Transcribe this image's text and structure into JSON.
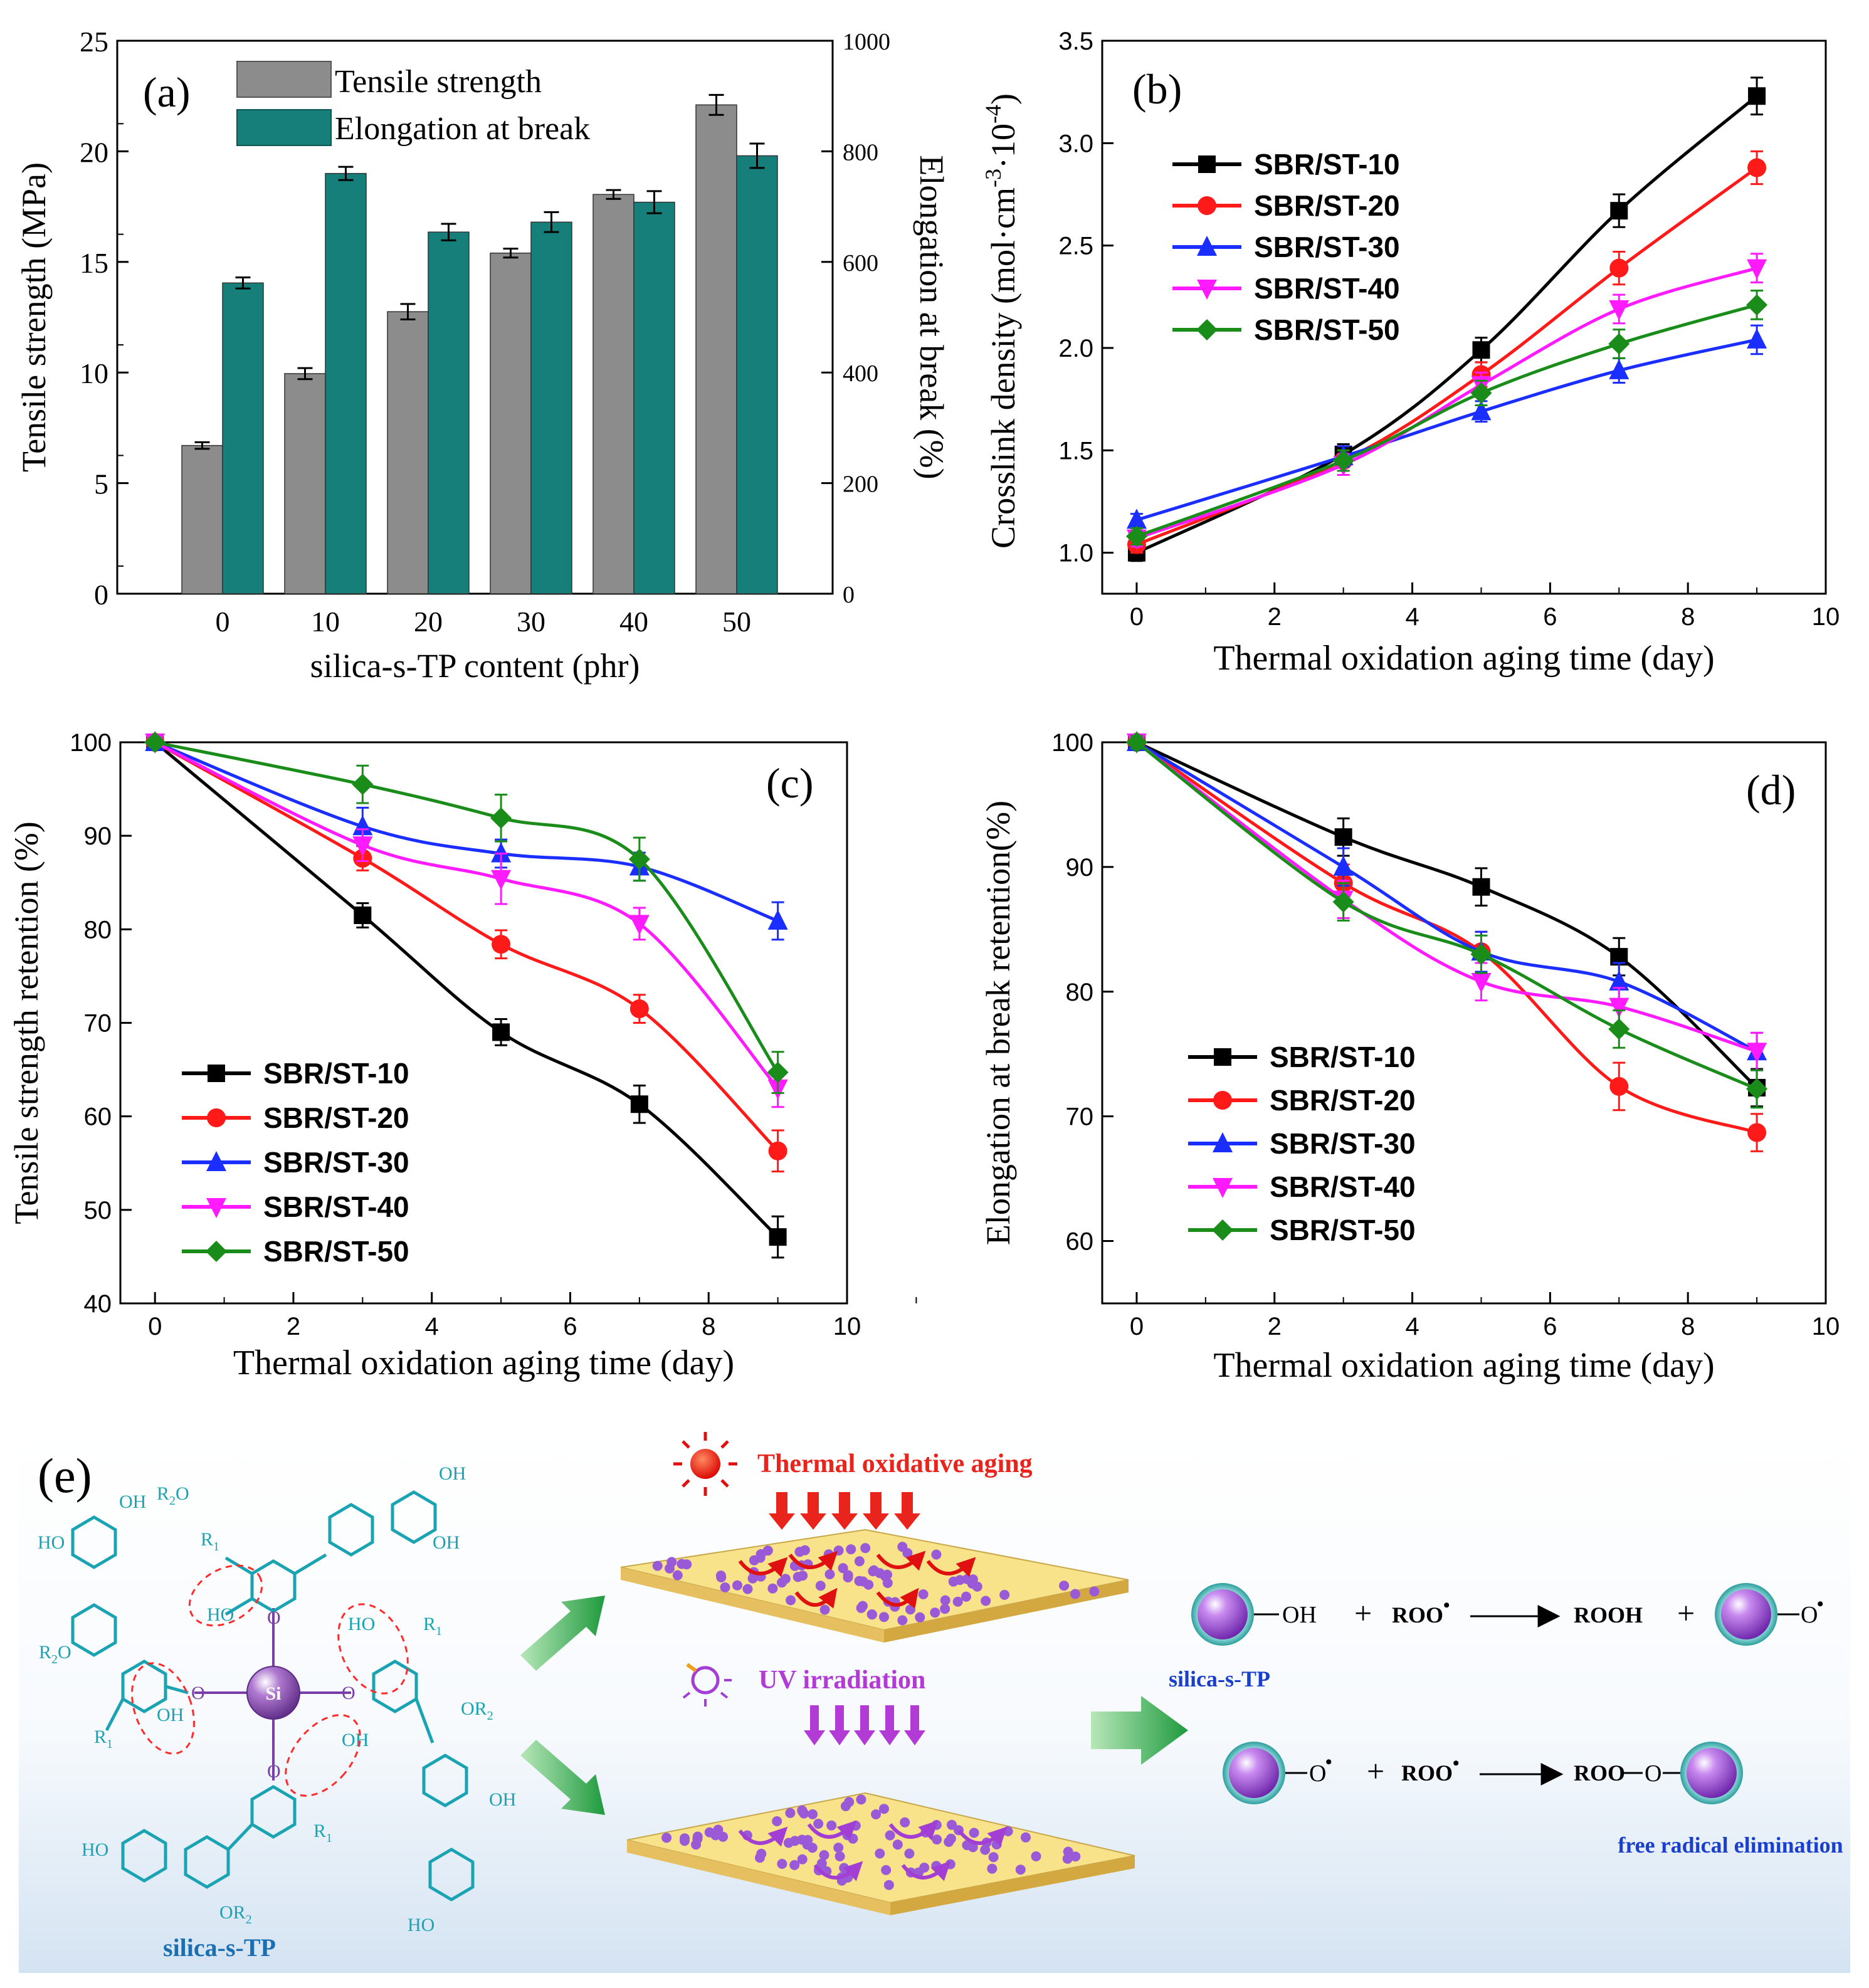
{
  "chart_data": [
    {
      "panel": "(a)",
      "type": "bar",
      "xlabel": "silica-s-TP content (phr)",
      "ylabel": "Tensile strength (MPa)",
      "y2label": "Elongation at break (%)",
      "categories": [
        "0",
        "10",
        "20",
        "30",
        "40",
        "50"
      ],
      "ylim": [
        0,
        25
      ],
      "y2lim": [
        0,
        1000
      ],
      "yticks": [
        "0",
        "5",
        "10",
        "15",
        "20",
        "25"
      ],
      "y2ticks": [
        "0",
        "200",
        "400",
        "600",
        "800",
        "1000"
      ],
      "series": [
        {
          "name": "Tensile strength",
          "axis": "left",
          "color": "#8c8c8c",
          "values": [
            6.7,
            9.95,
            12.75,
            15.4,
            18.05,
            22.1
          ],
          "errors": [
            0.15,
            0.25,
            0.35,
            0.2,
            0.2,
            0.45
          ]
        },
        {
          "name": "Elongation at break",
          "axis": "right",
          "color": "#177f79",
          "values": [
            562,
            760,
            654,
            672,
            708,
            792
          ],
          "errors": [
            10,
            12,
            15,
            18,
            20,
            22
          ]
        }
      ]
    },
    {
      "panel": "(b)",
      "type": "line",
      "xlabel": "Thermal oxidation aging time (day)",
      "ylabel": "Crosslink density (mol·cm",
      "ylabel_sup1": "-3",
      "ylabel_mid": "·10",
      "ylabel_sup2": "-4",
      "ylabel_end": ")",
      "xlim": [
        -0.5,
        10
      ],
      "ylim": [
        0.8,
        3.5
      ],
      "xticks": [
        "0",
        "2",
        "4",
        "6",
        "8",
        "10"
      ],
      "yticks": [
        "1.0",
        "1.5",
        "2.0",
        "2.5",
        "3.0",
        "3.5"
      ],
      "x": [
        0,
        3,
        5,
        7,
        9
      ],
      "series": [
        {
          "name": "SBR/ST-10",
          "color": "#000000",
          "marker": "square",
          "values": [
            1.0,
            1.48,
            1.99,
            2.67,
            3.23
          ],
          "errors": [
            0.04,
            0.05,
            0.06,
            0.08,
            0.09
          ]
        },
        {
          "name": "SBR/ST-20",
          "color": "#ff1a1a",
          "marker": "circle",
          "values": [
            1.04,
            1.45,
            1.87,
            2.39,
            2.88
          ],
          "errors": [
            0.04,
            0.05,
            0.06,
            0.08,
            0.08
          ]
        },
        {
          "name": "SBR/ST-30",
          "color": "#1a2eff",
          "marker": "triangle",
          "values": [
            1.16,
            1.47,
            1.69,
            1.89,
            2.04
          ],
          "errors": [
            0.03,
            0.05,
            0.05,
            0.06,
            0.07
          ]
        },
        {
          "name": "SBR/ST-40",
          "color": "#ff1aff",
          "marker": "tridown",
          "values": [
            1.07,
            1.43,
            1.82,
            2.19,
            2.39
          ],
          "errors": [
            0.04,
            0.05,
            0.06,
            0.07,
            0.07
          ]
        },
        {
          "name": "SBR/ST-50",
          "color": "#1a8c1a",
          "marker": "diamond",
          "values": [
            1.08,
            1.45,
            1.78,
            2.02,
            2.21
          ],
          "errors": [
            0.04,
            0.05,
            0.06,
            0.07,
            0.07
          ]
        }
      ]
    },
    {
      "panel": "(c)",
      "type": "line",
      "xlabel": "Thermal oxidation aging time (day)",
      "ylabel": "Tensile strength retention (%)",
      "xlim": [
        -0.5,
        10
      ],
      "ylim": [
        40,
        100
      ],
      "xticks": [
        "0",
        "2",
        "4",
        "6",
        "8",
        "10"
      ],
      "yticks": [
        "40",
        "50",
        "60",
        "70",
        "80",
        "90",
        "100"
      ],
      "x": [
        0,
        3,
        5,
        7,
        9
      ],
      "series": [
        {
          "name": "SBR/ST-10",
          "color": "#000000",
          "marker": "square",
          "values": [
            100,
            81.5,
            69.0,
            61.3,
            47.1
          ],
          "errors": [
            0.5,
            1.3,
            1.4,
            2.0,
            2.2
          ]
        },
        {
          "name": "SBR/ST-20",
          "color": "#ff1a1a",
          "marker": "circle",
          "values": [
            100,
            87.6,
            78.4,
            71.5,
            56.3
          ],
          "errors": [
            0.5,
            1.3,
            1.5,
            1.5,
            2.2
          ]
        },
        {
          "name": "SBR/ST-30",
          "color": "#1a2eff",
          "marker": "triangle",
          "values": [
            100,
            91.0,
            88.1,
            86.7,
            80.9
          ],
          "errors": [
            0.5,
            2.0,
            1.5,
            1.5,
            2.0
          ]
        },
        {
          "name": "SBR/ST-40",
          "color": "#ff1aff",
          "marker": "tridown",
          "values": [
            100,
            89.0,
            85.4,
            80.6,
            63.0
          ],
          "errors": [
            0.5,
            1.7,
            2.7,
            1.7,
            2.0
          ]
        },
        {
          "name": "SBR/ST-50",
          "color": "#1a8c1a",
          "marker": "diamond",
          "values": [
            100,
            95.5,
            91.9,
            87.5,
            64.7
          ],
          "errors": [
            0.5,
            2.0,
            2.5,
            2.3,
            2.2
          ]
        }
      ]
    },
    {
      "panel": "(d)",
      "type": "line",
      "xlabel": "Thermal oxidation aging time (day)",
      "ylabel": "Elongation at break retention(%)",
      "xlim": [
        -0.5,
        10
      ],
      "ylim": [
        55,
        100
      ],
      "xticks": [
        "0",
        "2",
        "4",
        "6",
        "8",
        "10"
      ],
      "yticks": [
        "60",
        "70",
        "80",
        "90",
        "100"
      ],
      "x": [
        0,
        3,
        5,
        7,
        9
      ],
      "series": [
        {
          "name": "SBR/ST-10",
          "color": "#000000",
          "marker": "square",
          "values": [
            100,
            92.4,
            88.4,
            82.8,
            72.3
          ],
          "errors": [
            0.5,
            1.5,
            1.5,
            1.5,
            1.5
          ]
        },
        {
          "name": "SBR/ST-20",
          "color": "#ff1a1a",
          "marker": "circle",
          "values": [
            100,
            88.7,
            83.2,
            72.4,
            68.7
          ],
          "errors": [
            0.5,
            1.5,
            1.6,
            1.9,
            1.5
          ]
        },
        {
          "name": "SBR/ST-30",
          "color": "#1a2eff",
          "marker": "triangle",
          "values": [
            100,
            90.0,
            83.2,
            80.8,
            75.2
          ],
          "errors": [
            0.5,
            1.5,
            1.6,
            1.5,
            1.5
          ]
        },
        {
          "name": "SBR/ST-40",
          "color": "#ff1aff",
          "marker": "tridown",
          "values": [
            100,
            87.4,
            80.8,
            78.8,
            75.2
          ],
          "errors": [
            0.5,
            1.5,
            1.5,
            1.5,
            1.5
          ]
        },
        {
          "name": "SBR/ST-50",
          "color": "#1a8c1a",
          "marker": "diamond",
          "values": [
            100,
            87.2,
            83.0,
            77.0,
            72.2
          ],
          "errors": [
            0.5,
            1.5,
            1.5,
            1.5,
            1.5
          ]
        }
      ]
    }
  ],
  "scheme": {
    "label": "(e)",
    "molecule_caption": "silica-s-TP",
    "center_atom": "Si",
    "group_labels": {
      "oh": "OH",
      "ho": "HO",
      "r1": "R",
      "r1_sub": "1",
      "r2o": "R",
      "r2o_sub": "2",
      "r2o_tail": "O",
      "or2": "OR",
      "or2_sub": "2",
      "o": "O"
    },
    "thermal_label": "Thermal oxidative aging",
    "uv_label": "UV irradiation",
    "eq1": {
      "oh": "OH",
      "plus": "+",
      "reactant": "ROO",
      "product1": "ROOH",
      "product2": "O"
    },
    "eq1_caption": "silica-s-TP",
    "eq2": {
      "left": "O",
      "plus": "+",
      "reactant": "ROO",
      "product": "ROO",
      "bridge": "O"
    },
    "eq2_caption": "free radical elimination",
    "colors": {
      "cyan": "#1aa3b3",
      "thermal": "#e8241c",
      "uv": "#b23bd6",
      "caption": "#1a3fcc",
      "arrow": "#2fa84a"
    }
  }
}
